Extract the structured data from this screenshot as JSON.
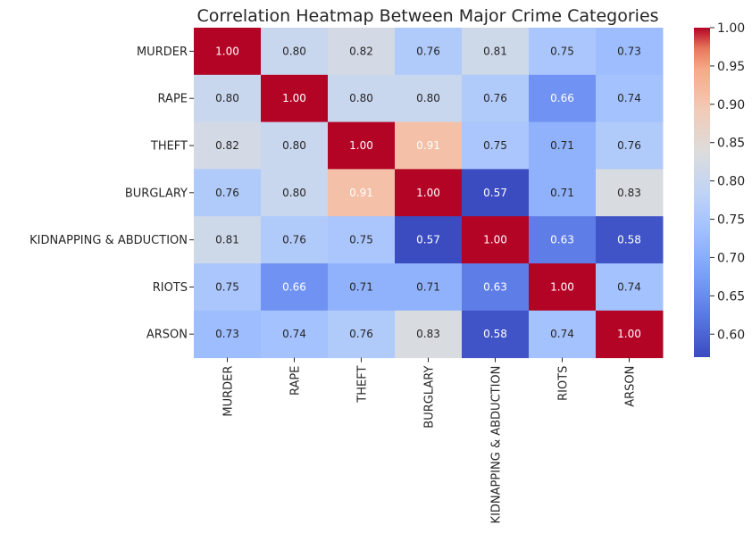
{
  "chart_data": {
    "type": "heatmap",
    "title": "Correlation Heatmap Between Major Crime Categories",
    "rows": [
      "MURDER",
      "RAPE",
      "THEFT",
      "BURGLARY",
      "KIDNAPPING & ABDUCTION",
      "RIOTS",
      "ARSON"
    ],
    "columns": [
      "MURDER",
      "RAPE",
      "THEFT",
      "BURGLARY",
      "KIDNAPPING & ABDUCTION",
      "RIOTS",
      "ARSON"
    ],
    "values": [
      [
        1.0,
        0.8,
        0.82,
        0.76,
        0.81,
        0.75,
        0.73
      ],
      [
        0.8,
        1.0,
        0.8,
        0.8,
        0.76,
        0.66,
        0.74
      ],
      [
        0.82,
        0.8,
        1.0,
        0.91,
        0.75,
        0.71,
        0.76
      ],
      [
        0.76,
        0.8,
        0.91,
        1.0,
        0.57,
        0.71,
        0.83
      ],
      [
        0.81,
        0.76,
        0.75,
        0.57,
        1.0,
        0.63,
        0.58
      ],
      [
        0.75,
        0.66,
        0.71,
        0.71,
        0.63,
        1.0,
        0.74
      ],
      [
        0.73,
        0.74,
        0.76,
        0.83,
        0.58,
        0.74,
        1.0
      ]
    ],
    "value_labels": [
      [
        "1.00",
        "0.80",
        "0.82",
        "0.76",
        "0.81",
        "0.75",
        "0.73"
      ],
      [
        "0.80",
        "1.00",
        "0.80",
        "0.80",
        "0.76",
        "0.66",
        "0.74"
      ],
      [
        "0.82",
        "0.80",
        "1.00",
        "0.91",
        "0.75",
        "0.71",
        "0.76"
      ],
      [
        "0.76",
        "0.80",
        "0.91",
        "1.00",
        "0.57",
        "0.71",
        "0.83"
      ],
      [
        "0.81",
        "0.76",
        "0.75",
        "0.57",
        "1.00",
        "0.63",
        "0.58"
      ],
      [
        "0.75",
        "0.66",
        "0.71",
        "0.71",
        "0.63",
        "1.00",
        "0.74"
      ],
      [
        "0.73",
        "0.74",
        "0.76",
        "0.83",
        "0.58",
        "0.74",
        "1.00"
      ]
    ],
    "colormap": "coolwarm",
    "vmin": 0.57,
    "vmax": 1.0,
    "colorbar_ticks": [
      "0.60",
      "0.65",
      "0.70",
      "0.75",
      "0.80",
      "0.85",
      "0.90",
      "0.95",
      "1.00"
    ],
    "colorbar_tick_values": [
      0.6,
      0.65,
      0.7,
      0.75,
      0.8,
      0.85,
      0.9,
      0.95,
      1.0
    ],
    "colorbar_placement": "right",
    "grid": false
  }
}
